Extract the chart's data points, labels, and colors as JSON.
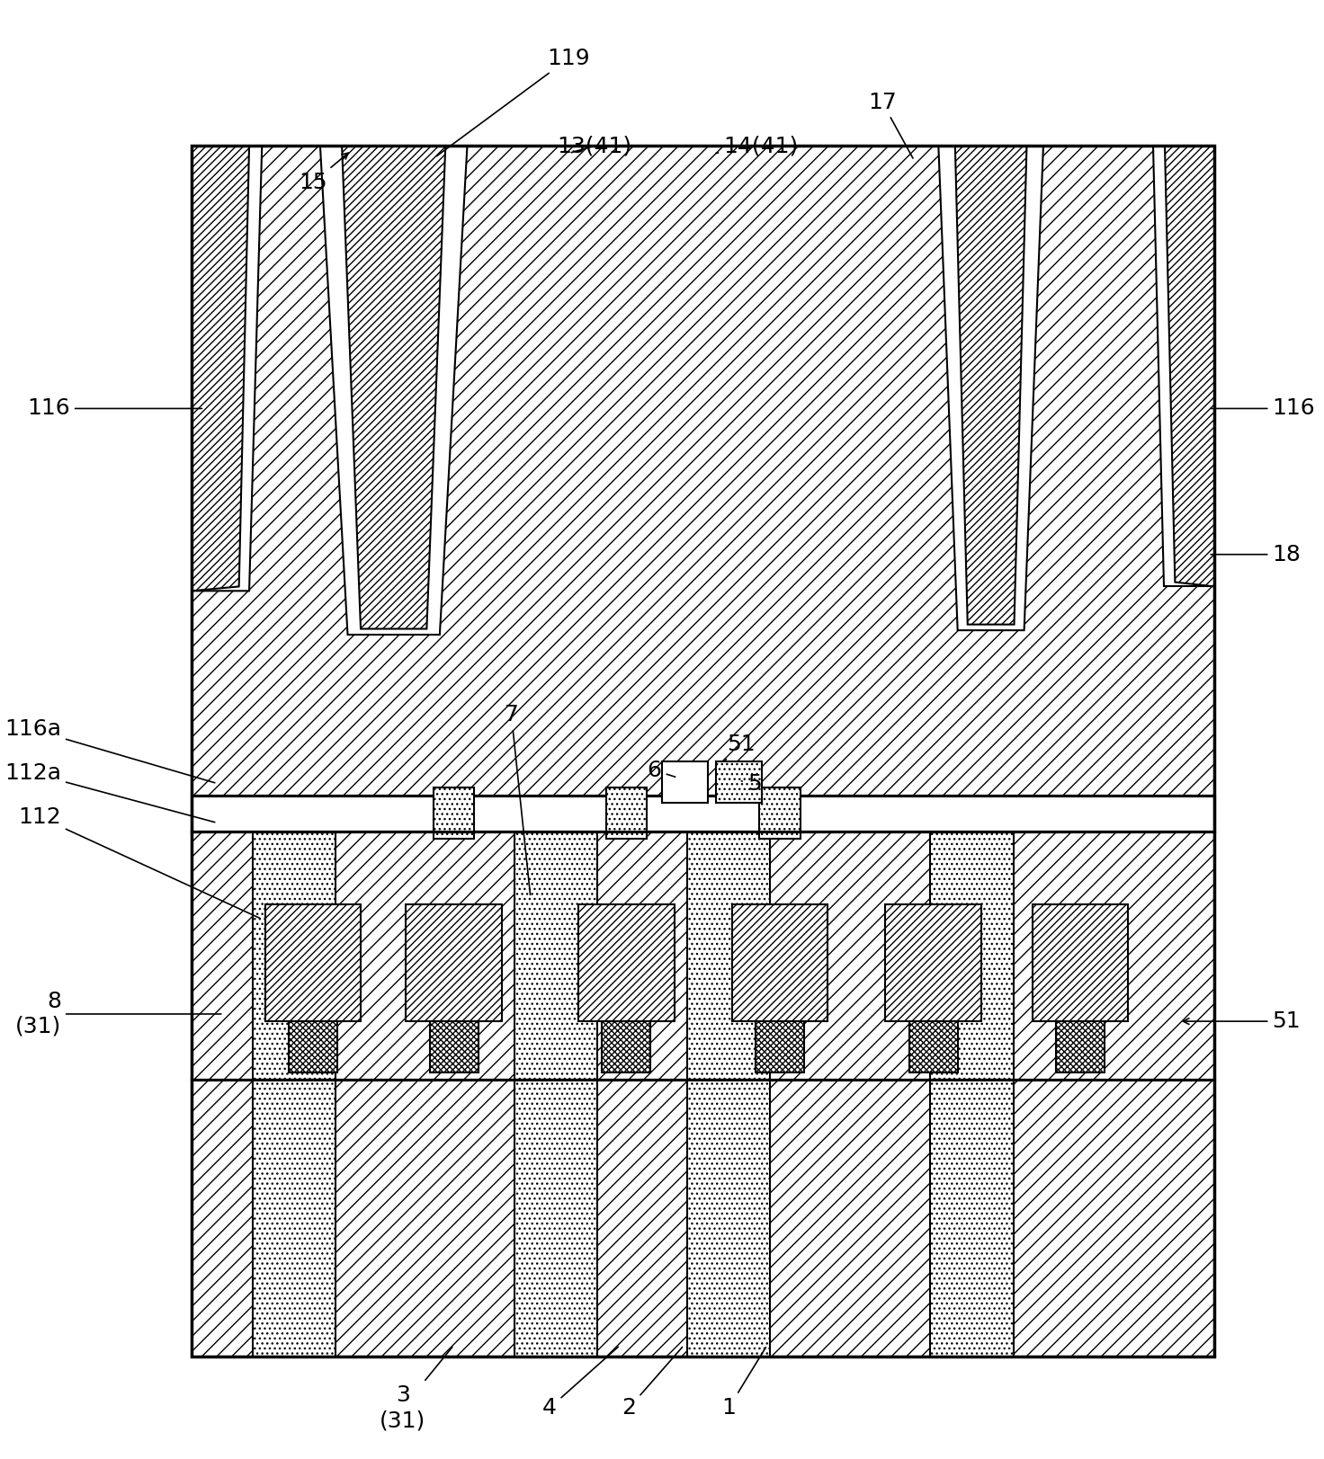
{
  "background_color": "#ffffff",
  "border_color": "#000000",
  "line_width": 1.5,
  "fig_width": 14.72,
  "fig_height": 16.23
}
